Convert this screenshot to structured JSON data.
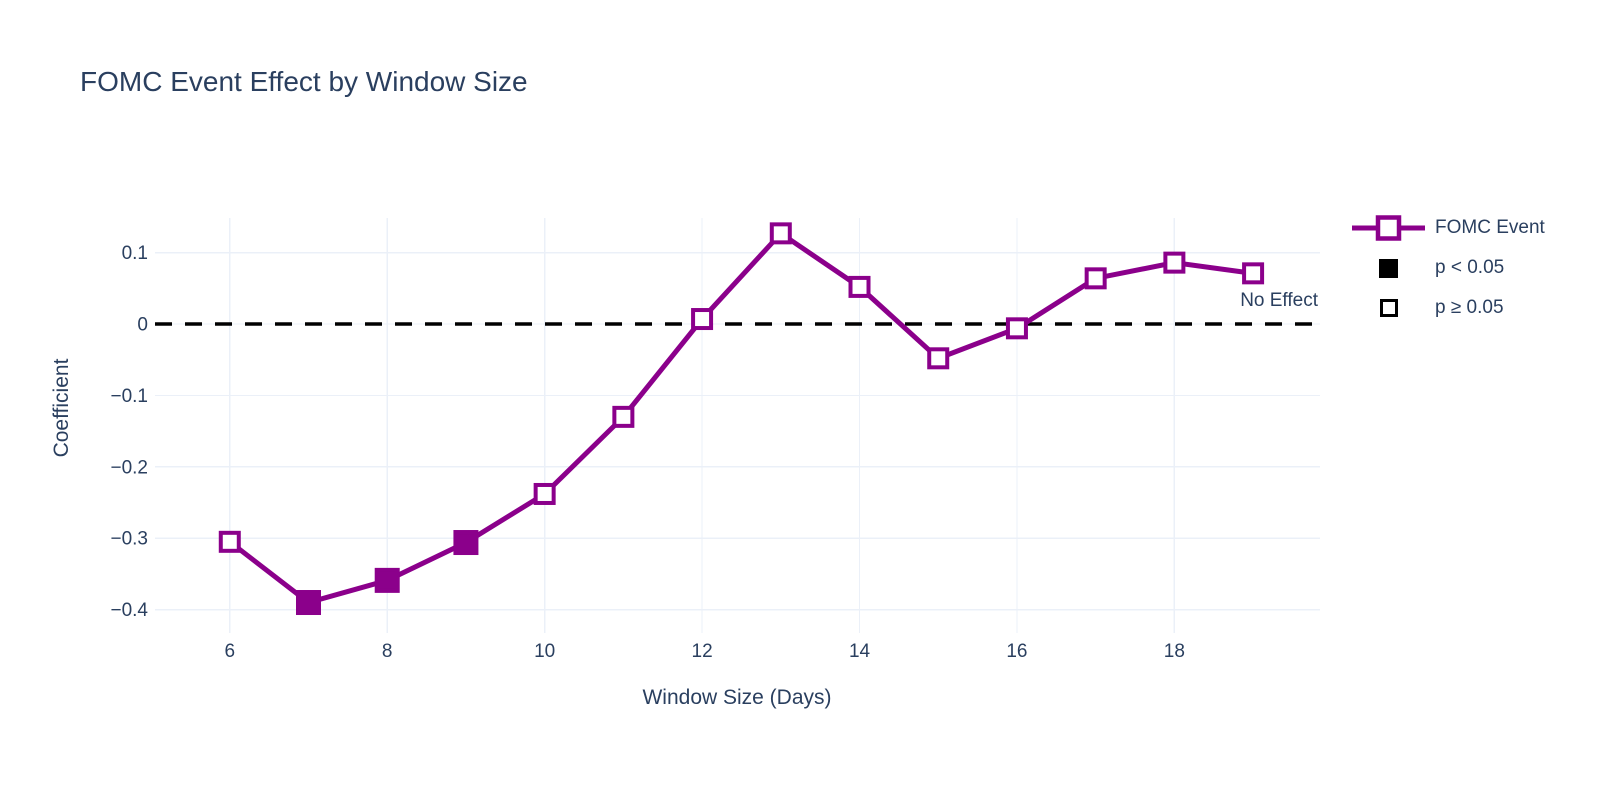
{
  "chart_data": {
    "type": "line",
    "title": "FOMC Event Effect by Window Size",
    "x_axis": {
      "label": "Window Size (Days)",
      "lim": [
        5.05,
        19.85
      ],
      "ticks": [
        {
          "v": 6,
          "t": "6"
        },
        {
          "v": 8,
          "t": "8"
        },
        {
          "v": 10,
          "t": "10"
        },
        {
          "v": 12,
          "t": "12"
        },
        {
          "v": 14,
          "t": "14"
        },
        {
          "v": 16,
          "t": "16"
        },
        {
          "v": 18,
          "t": "18"
        }
      ]
    },
    "y_axis": {
      "label": "Coefficient",
      "lim": [
        -0.4327,
        0.1485
      ],
      "ticks": [
        {
          "v": 0.1,
          "t": "0.1"
        },
        {
          "v": 0,
          "t": "0"
        },
        {
          "v": -0.1,
          "t": "−0.1"
        },
        {
          "v": -0.2,
          "t": "−0.2"
        },
        {
          "v": -0.3,
          "t": "−0.3"
        },
        {
          "v": -0.4,
          "t": "−0.4"
        }
      ]
    },
    "series": [
      {
        "name": "FOMC Event",
        "x": [
          6,
          7,
          8,
          9,
          10,
          11,
          12,
          13,
          14,
          15,
          16,
          17,
          18,
          19
        ],
        "y": [
          -0.305,
          -0.39,
          -0.359,
          -0.306,
          -0.238,
          -0.13,
          0.007,
          0.127,
          0.052,
          -0.048,
          -0.006,
          0.064,
          0.086,
          0.071
        ],
        "significant": [
          false,
          true,
          true,
          true,
          false,
          false,
          false,
          false,
          false,
          false,
          false,
          false,
          false,
          false
        ]
      }
    ],
    "zero_line": {
      "y": 0,
      "style": "dashed"
    },
    "annotation": {
      "text": "No Effect"
    },
    "legend": {
      "items": [
        {
          "label": "FOMC Event",
          "type": "line-marker"
        },
        {
          "label": "p < 0.05",
          "type": "filled-square"
        },
        {
          "label": "p ≥ 0.05",
          "type": "open-square"
        }
      ]
    },
    "colors": {
      "line": "#8B008B",
      "grid": "#EBF0F8",
      "text": "#2A3F5F",
      "zero": "#000000",
      "background": "#FFFFFF"
    }
  }
}
